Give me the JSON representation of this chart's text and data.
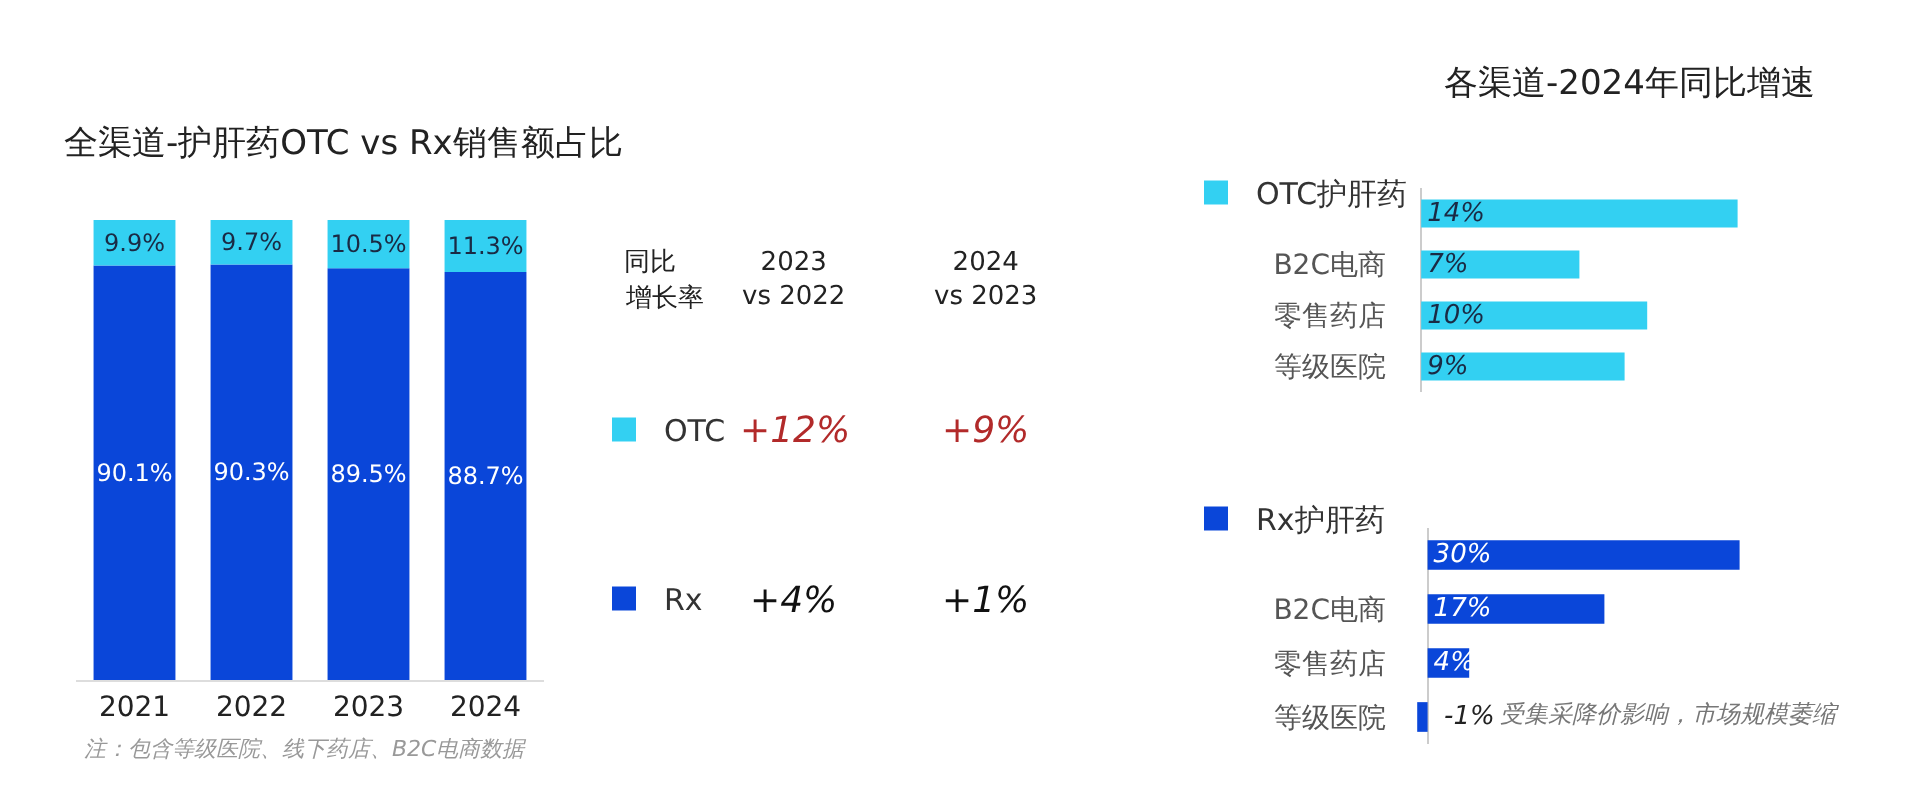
{
  "chart_data": [
    {
      "type": "bar",
      "title": "全渠道-护肝药OTC vs Rx销售额占比",
      "categories": [
        "2021",
        "2022",
        "2023",
        "2024"
      ],
      "stacked": true,
      "legend": "right",
      "tick_labels": "x",
      "series": [
        {
          "name": "Rx",
          "color": "#0a46d9",
          "values": [
            90.1,
            90.3,
            89.5,
            88.7
          ],
          "value_labels": [
            "90.1%",
            "90.3%",
            "89.5%",
            "88.7%"
          ]
        },
        {
          "name": "OTC",
          "color": "#33d0f2",
          "values": [
            9.9,
            9.7,
            10.5,
            11.3
          ],
          "value_labels": [
            "9.9%",
            "9.7%",
            "10.5%",
            "11.3%"
          ]
        }
      ],
      "annotations": [
        "注：包含等级医院、线下药店、B2C电商数据"
      ]
    },
    {
      "type": "other",
      "annotations": [
        "同比",
        "增长率",
        "2023\nvs 2022",
        "2024\nvs 2023",
        "+12%",
        "+9%",
        "+4%",
        "+1%"
      ]
    },
    {
      "type": "bar",
      "orientation": "horizontal",
      "title": "各渠道-2024年同比增速",
      "categories": [
        null,
        "B2C电商",
        "零售药店",
        "等级医院"
      ],
      "legend": "top left",
      "tick_labels": "y",
      "series": [
        {
          "name": "OTC护肝药",
          "color": "#33d0f2",
          "values": [
            14,
            7,
            10,
            9
          ],
          "value_labels": [
            "14%",
            "7%",
            "10%",
            "9%"
          ]
        }
      ]
    },
    {
      "type": "bar",
      "orientation": "horizontal",
      "categories": [
        null,
        "B2C电商",
        "零售药店",
        "等级医院"
      ],
      "legend": "top left",
      "tick_labels": "y",
      "series": [
        {
          "name": "Rx护肝药",
          "color": "#0a46d9",
          "values": [
            30,
            17,
            4,
            -1
          ],
          "value_labels": [
            "30%",
            "17%",
            "4%",
            "-1%"
          ]
        }
      ],
      "annotations": [
        "受集采降价影响，市场规模萎缩"
      ]
    }
  ]
}
